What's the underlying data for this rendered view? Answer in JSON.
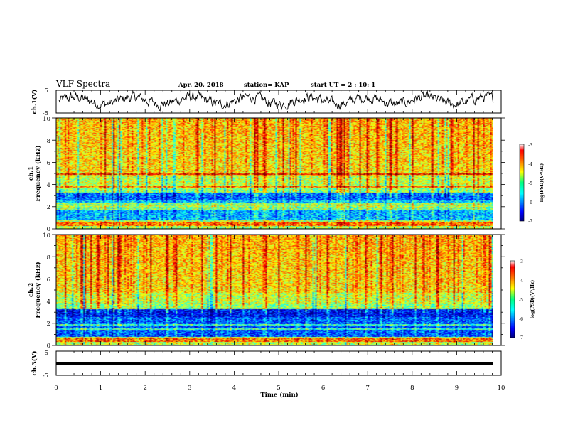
{
  "header": {
    "title": "VLF Spectra",
    "date": "Apr. 20, 2018",
    "station": "station= KAP",
    "start": "start  UT =   2 : 10: 1"
  },
  "chart_data": [
    {
      "type": "line",
      "name": "ch1-waveform",
      "ylabel": "ch.1(V)",
      "ylim": [
        -5,
        5
      ],
      "yticks": [
        "5",
        "-5"
      ],
      "xlim": [
        0,
        10
      ]
    },
    {
      "type": "heatmap",
      "name": "ch1-spectrogram",
      "ylabel": "ch.1\nFrequency (kHz)",
      "ylabel_lines": [
        "ch.1",
        "Frequency (kHz)"
      ],
      "ylim": [
        0,
        10
      ],
      "yticks": [
        "0",
        "2",
        "4",
        "6",
        "8",
        "10"
      ],
      "xlim": [
        0,
        10
      ],
      "data_end_x": 9.82,
      "colorbar": {
        "label": "log(PSD)(V²/Hz)",
        "range": [
          -7,
          -3
        ],
        "ticks": [
          "-3",
          "-4",
          "-5",
          "-6",
          "-7"
        ]
      }
    },
    {
      "type": "heatmap",
      "name": "ch2-spectrogram",
      "ylabel": "ch.2\nFrequency (kHz)",
      "ylabel_lines": [
        "ch.2",
        "Frequency (kHz)"
      ],
      "ylim": [
        0,
        10
      ],
      "yticks": [
        "0",
        "2",
        "4",
        "6",
        "8",
        "10"
      ],
      "xlim": [
        0,
        10
      ],
      "data_end_x": 9.82,
      "colorbar": {
        "label": "log(PSD)(V²/Hz)",
        "range": [
          -7,
          -3
        ],
        "ticks": [
          "-3",
          "-4",
          "-5",
          "-6",
          "-7"
        ]
      }
    },
    {
      "type": "line",
      "name": "ch3-waveform",
      "ylabel": "ch.3(V)",
      "ylim": [
        -5,
        5
      ],
      "yticks": [
        "5",
        "-5"
      ],
      "xlim": [
        0,
        10
      ],
      "constant_value": 0
    }
  ],
  "xaxis": {
    "label": "Time (min)",
    "ticks": [
      "0",
      "1",
      "2",
      "3",
      "4",
      "5",
      "6",
      "7",
      "8",
      "9",
      "10"
    ]
  },
  "colors": {
    "jet": [
      "#000080",
      "#0000ff",
      "#00ffff",
      "#00ff80",
      "#ffff00",
      "#ff8000",
      "#ff0000",
      "#800000"
    ]
  }
}
